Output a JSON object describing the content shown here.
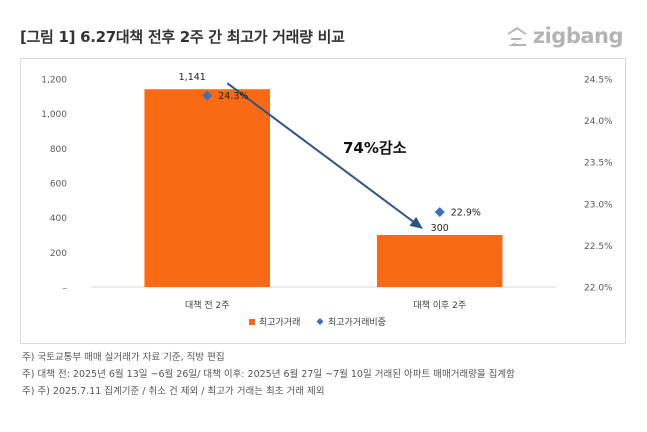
{
  "title": "[그림 1] 6.27대책 전후 2주 간 최고가 거래량 비교",
  "brand": {
    "name": "zigbang",
    "color": "#b4b4b4"
  },
  "annotation": "74%감소",
  "chart_data": {
    "type": "bar",
    "categories": [
      "대책 전 2주",
      "대책 이후 2주"
    ],
    "series": [
      {
        "name": "최고가거래",
        "type": "bar",
        "axis": "left",
        "color": "#fa6a14",
        "values": [
          1141,
          300
        ],
        "labels": [
          "1,141",
          "300"
        ]
      },
      {
        "name": "최고가거래비중",
        "type": "scatter",
        "axis": "right",
        "color": "#3f6fb5",
        "values": [
          24.3,
          22.9
        ],
        "labels": [
          "24.3%",
          "22.9%"
        ]
      }
    ],
    "y_left": {
      "min": 0,
      "max": 1200,
      "ticks": [
        "–",
        "200",
        "400",
        "600",
        "800",
        "1,000",
        "1,200"
      ]
    },
    "y_right": {
      "min": 22.0,
      "max": 24.5,
      "ticks": [
        "22.0%",
        "22.5%",
        "23.0%",
        "23.5%",
        "24.0%",
        "24.5%"
      ]
    },
    "grid": false,
    "legend_position": "bottom"
  },
  "notes": [
    "주) 국토교통부 매매 실거래가 자료 기준, 직방 편집",
    "주) 대책 전: 2025년 6월 13일 ~6월 26일/ 대책 이후: 2025년 6월 27일 ~7월 10일 거래된 아파트 매매거래량을 집계함",
    "주) 주) 2025.7.11 집계기준 / 취소 건 제외 / 최고가 거래는 최초 거래 제외"
  ]
}
